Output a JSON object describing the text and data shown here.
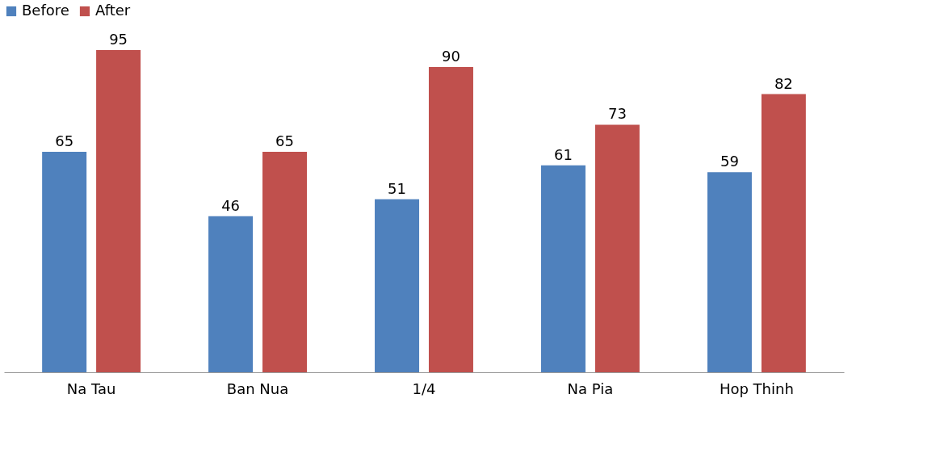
{
  "chart_data": {
    "type": "bar",
    "categories": [
      "Na Tau",
      "Ban Nua",
      "1/4",
      "Na Pia",
      "Hop Thinh"
    ],
    "series": [
      {
        "name": "Before",
        "color": "#4f81bd",
        "values": [
          65,
          46,
          51,
          61,
          59
        ]
      },
      {
        "name": "After",
        "color": "#c0504d",
        "values": [
          95,
          65,
          90,
          73,
          82
        ]
      }
    ],
    "data_labels": true,
    "legend": "top",
    "grid": false
  }
}
